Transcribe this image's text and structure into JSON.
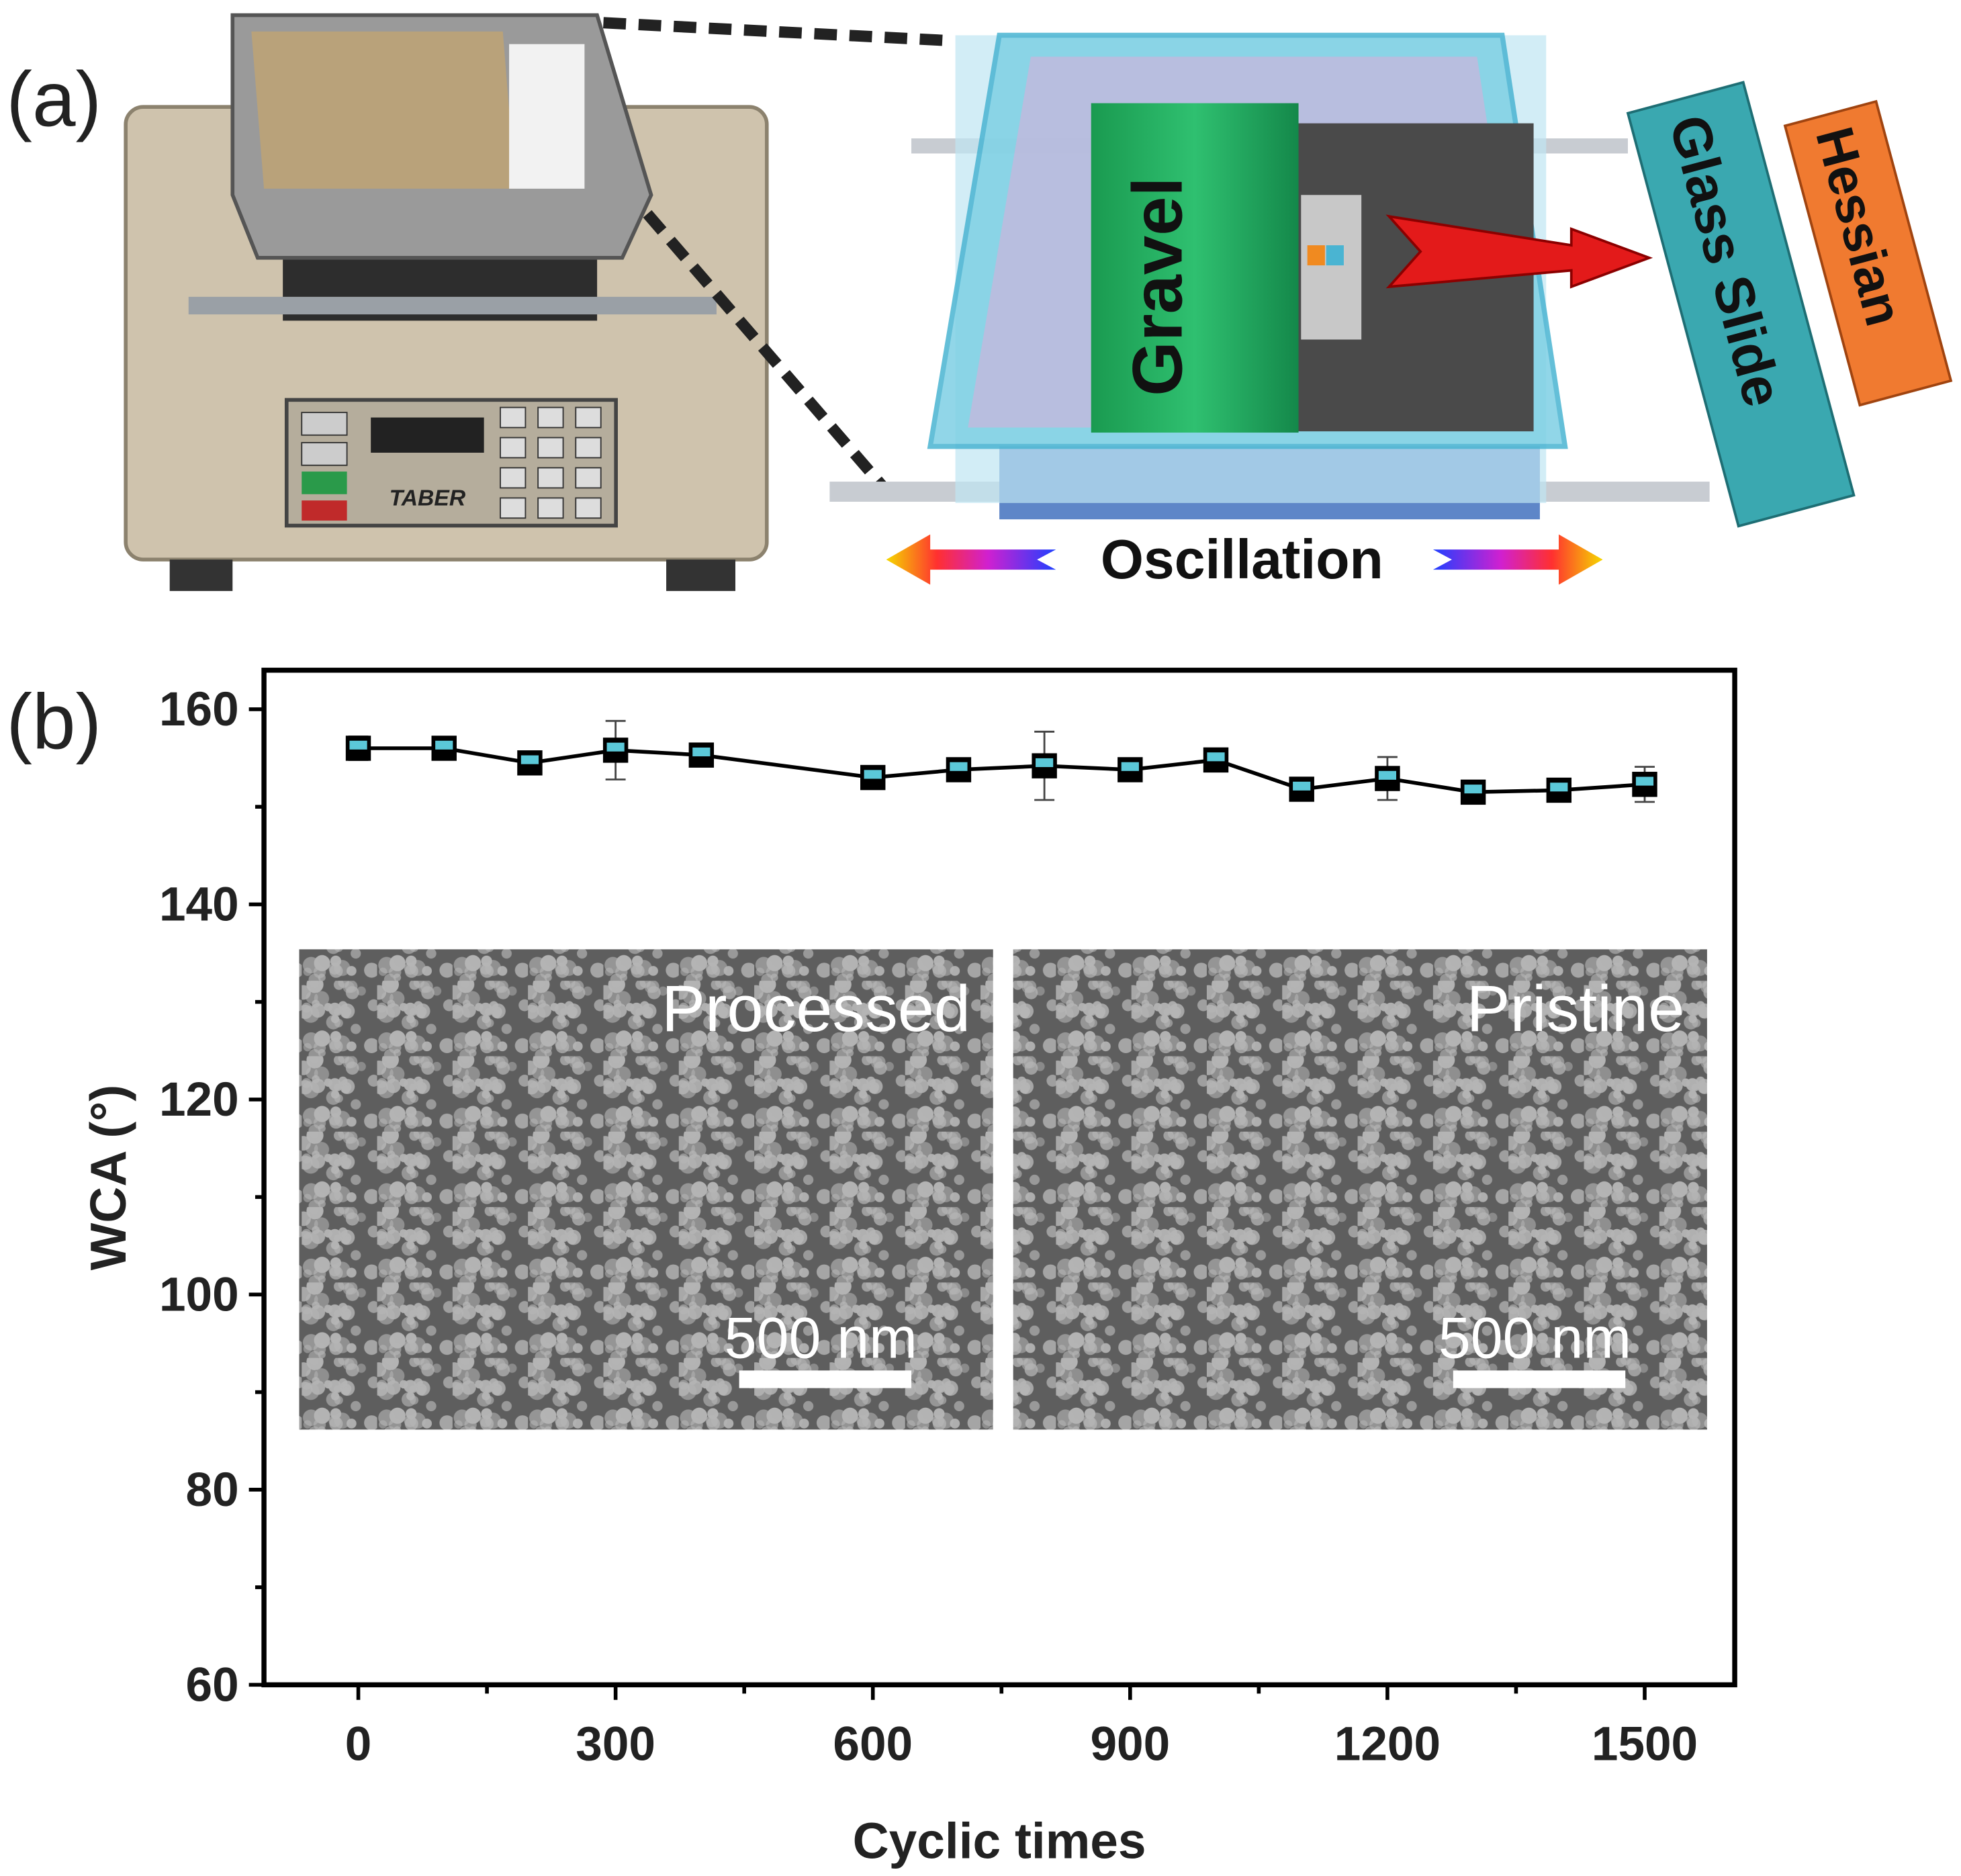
{
  "panel_a": {
    "label": "(a)",
    "machine_brand": "TABER",
    "gravel": "Gravel",
    "glass_slide": "Glass Slide",
    "hessian": "Hessian",
    "oscillation": "Oscillation"
  },
  "chart_data": {
    "type": "line",
    "panel_label": "(b)",
    "x": [
      0,
      100,
      200,
      300,
      400,
      600,
      700,
      800,
      900,
      1000,
      1100,
      1200,
      1300,
      1400,
      1500
    ],
    "values": [
      156,
      156,
      154.5,
      155.8,
      155.3,
      153,
      153.8,
      154.2,
      153.8,
      154.8,
      151.8,
      152.9,
      151.5,
      151.7,
      152.3
    ],
    "errors": [
      1.2,
      0.5,
      0.5,
      3,
      0.5,
      0.5,
      0.5,
      3.5,
      0.5,
      0.5,
      0.5,
      2.2,
      0.5,
      0.5,
      1.8
    ],
    "color": "#000000",
    "marker_color": "#5bc8d8",
    "xlabel": "Cyclic times",
    "ylabel": "WCA (°)",
    "xlim": [
      -110,
      1605
    ],
    "ylim": [
      60,
      164
    ],
    "xticks": [
      0,
      300,
      600,
      900,
      1200,
      1500
    ],
    "yticks": [
      60,
      80,
      100,
      120,
      140,
      160
    ],
    "insets": [
      {
        "label": "Processed",
        "scale_bar": "500 nm"
      },
      {
        "label": "Pristine",
        "scale_bar": "500 nm"
      }
    ]
  }
}
